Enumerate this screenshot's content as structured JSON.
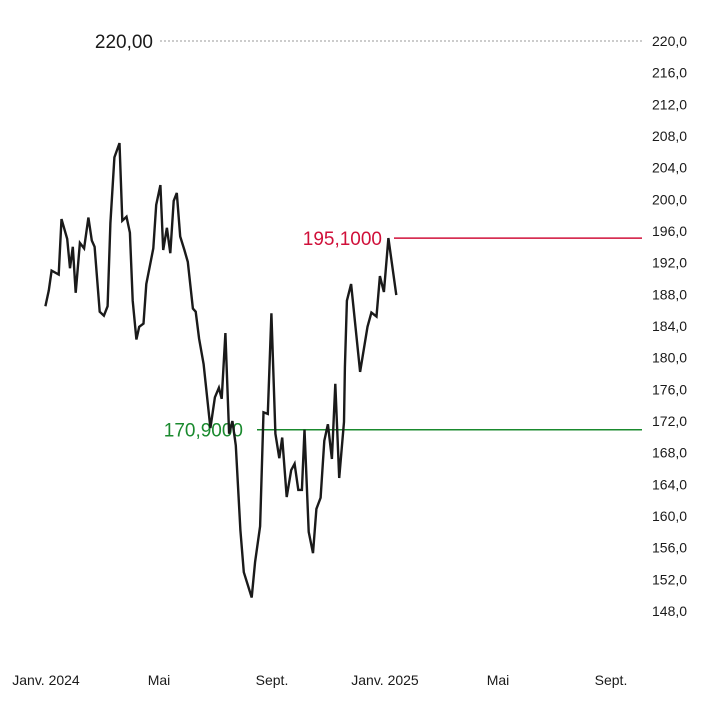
{
  "chart_data": {
    "type": "line",
    "ylim": [
      146,
      222
    ],
    "x_ticks": [
      {
        "label": "Janv. 2024",
        "x": 0
      },
      {
        "label": "Mai",
        "x": 4
      },
      {
        "label": "Sept.",
        "x": 8
      },
      {
        "label": "Janv. 2025",
        "x": 12
      },
      {
        "label": "Mai",
        "x": 16
      },
      {
        "label": "Sept.",
        "x": 20
      }
    ],
    "y_ticks": [
      "220,0",
      "216,0",
      "212,0",
      "208,0",
      "204,0",
      "200,0",
      "196,0",
      "192,0",
      "188,0",
      "184,0",
      "180,0",
      "176,0",
      "172,0",
      "168,0",
      "164,0",
      "160,0",
      "156,0",
      "152,0",
      "148,0"
    ],
    "y_tick_values": [
      220,
      216,
      212,
      208,
      204,
      200,
      196,
      192,
      188,
      184,
      180,
      176,
      172,
      168,
      164,
      160,
      156,
      152,
      148
    ],
    "reference_lines": [
      {
        "label": "220,00",
        "value": 220.0,
        "color": "#9a9a9a",
        "style": "dotted",
        "label_color": "#1a1a1a"
      },
      {
        "label": "195,1000",
        "value": 195.1,
        "color": "#d0103a",
        "style": "solid",
        "label_color": "#d0103a"
      },
      {
        "label": "170,9000",
        "value": 170.9,
        "color": "#1a8a2e",
        "style": "solid",
        "label_color": "#1a8a2e"
      }
    ],
    "series": [
      {
        "color": "#1a1a1a",
        "points": [
          [
            -0.02,
            186.5
          ],
          [
            0.1,
            188.5
          ],
          [
            0.2,
            191.0
          ],
          [
            0.45,
            190.5
          ],
          [
            0.55,
            197.5
          ],
          [
            0.75,
            195.0
          ],
          [
            0.85,
            191.3
          ],
          [
            0.95,
            194.0
          ],
          [
            1.05,
            188.2
          ],
          [
            1.2,
            194.5
          ],
          [
            1.35,
            193.8
          ],
          [
            1.5,
            197.7
          ],
          [
            1.62,
            194.8
          ],
          [
            1.72,
            194.0
          ],
          [
            1.9,
            185.8
          ],
          [
            2.05,
            185.3
          ],
          [
            2.18,
            186.5
          ],
          [
            2.28,
            197.0
          ],
          [
            2.42,
            205.3
          ],
          [
            2.6,
            207.1
          ],
          [
            2.7,
            197.3
          ],
          [
            2.85,
            197.8
          ],
          [
            2.97,
            195.8
          ],
          [
            3.07,
            187.2
          ],
          [
            3.2,
            182.3
          ],
          [
            3.3,
            183.9
          ],
          [
            3.45,
            184.3
          ],
          [
            3.55,
            189.3
          ],
          [
            3.8,
            193.8
          ],
          [
            3.9,
            199.3
          ],
          [
            4.05,
            201.8
          ],
          [
            4.15,
            193.6
          ],
          [
            4.28,
            196.4
          ],
          [
            4.4,
            193.2
          ],
          [
            4.52,
            199.8
          ],
          [
            4.63,
            200.8
          ],
          [
            4.75,
            195.3
          ],
          [
            4.9,
            193.6
          ],
          [
            5.02,
            192.1
          ],
          [
            5.2,
            186.2
          ],
          [
            5.3,
            185.8
          ],
          [
            5.42,
            182.4
          ],
          [
            5.58,
            179.2
          ],
          [
            5.82,
            171.1
          ],
          [
            5.98,
            175.0
          ],
          [
            6.12,
            176.2
          ],
          [
            6.22,
            174.8
          ],
          [
            6.35,
            183.1
          ],
          [
            6.48,
            170.4
          ],
          [
            6.6,
            172.0
          ],
          [
            6.72,
            168.9
          ],
          [
            6.88,
            158.2
          ],
          [
            7.0,
            152.9
          ],
          [
            7.28,
            149.7
          ],
          [
            7.4,
            154.2
          ],
          [
            7.58,
            158.7
          ],
          [
            7.7,
            173.1
          ],
          [
            7.85,
            172.9
          ],
          [
            7.98,
            185.6
          ],
          [
            8.12,
            170.4
          ],
          [
            8.26,
            167.3
          ],
          [
            8.36,
            169.9
          ],
          [
            8.52,
            162.4
          ],
          [
            8.68,
            165.8
          ],
          [
            8.8,
            166.6
          ],
          [
            8.93,
            163.3
          ],
          [
            9.06,
            163.3
          ],
          [
            9.15,
            170.9
          ],
          [
            9.3,
            158.0
          ],
          [
            9.45,
            155.3
          ],
          [
            9.57,
            160.9
          ],
          [
            9.72,
            162.3
          ],
          [
            9.85,
            169.5
          ],
          [
            9.98,
            171.6
          ],
          [
            10.12,
            167.2
          ],
          [
            10.24,
            176.7
          ],
          [
            10.38,
            164.8
          ],
          [
            10.55,
            171.9
          ],
          [
            10.58,
            178.8
          ],
          [
            10.65,
            187.2
          ],
          [
            10.8,
            189.3
          ],
          [
            11.12,
            178.2
          ],
          [
            11.38,
            183.9
          ],
          [
            11.52,
            185.7
          ],
          [
            11.7,
            185.2
          ],
          [
            11.82,
            190.3
          ],
          [
            11.96,
            188.3
          ],
          [
            12.12,
            195.1
          ],
          [
            12.4,
            187.9
          ]
        ]
      }
    ]
  }
}
